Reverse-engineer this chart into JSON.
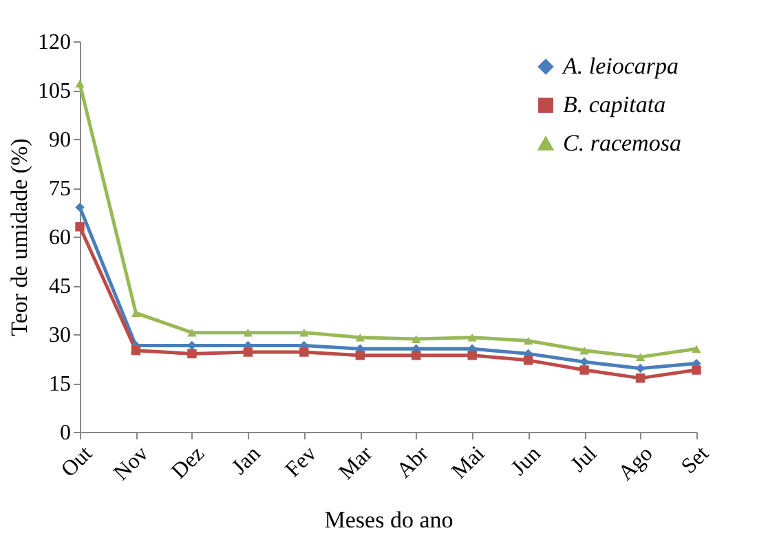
{
  "chart_data": {
    "type": "line",
    "xlabel": "Meses do ano",
    "ylabel": "Teor de umidade (%)",
    "categories": [
      "Out",
      "Nov",
      "Dez",
      "Jan",
      "Fev",
      "Mar",
      "Abr",
      "Mai",
      "Jun",
      "Jul",
      "Ago",
      "Set"
    ],
    "series": [
      {
        "name": "A. leiocarpa",
        "color": "#4a7ebb",
        "marker": "diamond",
        "values": [
          69,
          26.5,
          26.5,
          26.5,
          26.5,
          25.5,
          25.5,
          25.5,
          24,
          21.5,
          19.5,
          21
        ]
      },
      {
        "name": "B. capitata",
        "color": "#be4b48",
        "marker": "square",
        "values": [
          63,
          25,
          24,
          24.5,
          24.5,
          23.5,
          23.5,
          23.5,
          22,
          19,
          16.5,
          19
        ]
      },
      {
        "name": "C. racemosa",
        "color": "#98b954",
        "marker": "triangle",
        "values": [
          107,
          36.5,
          30.5,
          30.5,
          30.5,
          29,
          28.5,
          29,
          28,
          25,
          23,
          25.5
        ]
      }
    ],
    "ylim": [
      0,
      120
    ],
    "yticks": [
      0,
      15,
      30,
      45,
      60,
      75,
      90,
      105,
      120
    ],
    "grid": false,
    "legend": "top right",
    "line_style": "solid"
  }
}
